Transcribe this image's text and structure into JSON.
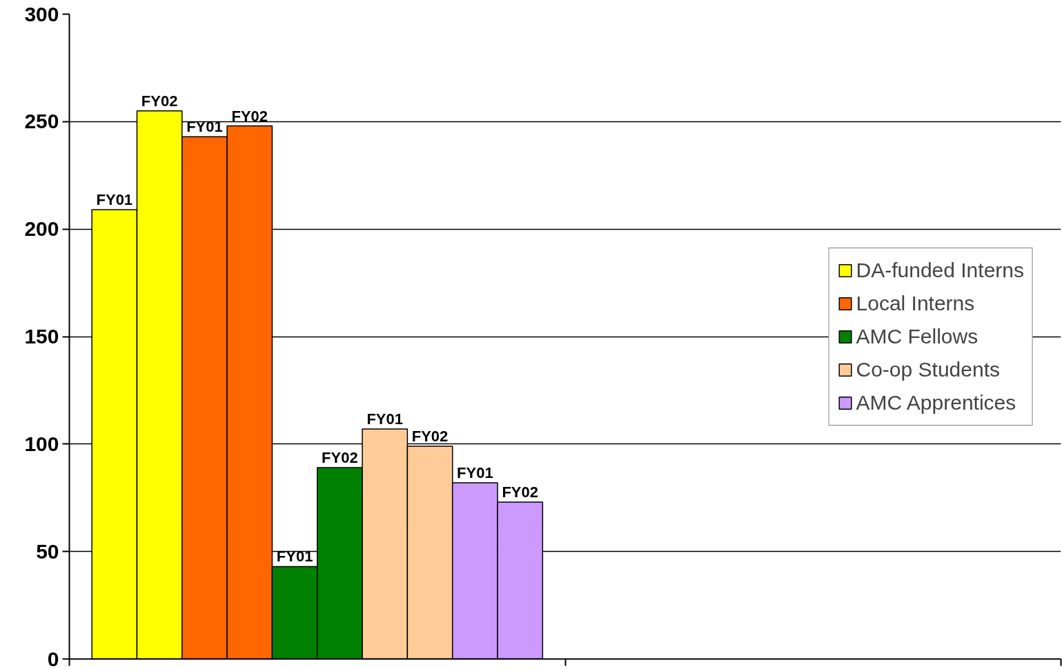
{
  "chart_data": {
    "type": "bar",
    "categories": [
      null,
      null,
      null,
      null,
      null,
      null,
      null,
      null,
      null,
      null
    ],
    "series": [
      {
        "name": "DA-funded Interns",
        "color": "#ffff00",
        "values": [
          209,
          255,
          null,
          null,
          null,
          null,
          null,
          null,
          null,
          null
        ],
        "value_labels": [
          "FY01",
          "FY02",
          null,
          null,
          null,
          null,
          null,
          null,
          null,
          null
        ]
      },
      {
        "name": "Local Interns",
        "color": "#ff6600",
        "values": [
          null,
          null,
          243,
          248,
          null,
          null,
          null,
          null,
          null,
          null
        ],
        "value_labels": [
          null,
          null,
          "FY01",
          "FY02",
          null,
          null,
          null,
          null,
          null,
          null
        ]
      },
      {
        "name": "AMC Fellows",
        "color": "#008000",
        "values": [
          null,
          null,
          null,
          null,
          43,
          89,
          null,
          null,
          null,
          null
        ],
        "value_labels": [
          null,
          null,
          null,
          null,
          "FY01",
          "FY02",
          null,
          null,
          null,
          null
        ]
      },
      {
        "name": "Co-op Students",
        "color": "#ffcc99",
        "values": [
          null,
          null,
          null,
          null,
          null,
          null,
          107,
          99,
          null,
          null
        ],
        "value_labels": [
          null,
          null,
          null,
          null,
          null,
          null,
          "FY01",
          "FY02",
          null,
          null
        ]
      },
      {
        "name": "AMC Apprentices",
        "color": "#cc99ff",
        "values": [
          null,
          null,
          null,
          null,
          null,
          null,
          null,
          null,
          82,
          73
        ],
        "value_labels": [
          null,
          null,
          null,
          null,
          null,
          null,
          null,
          null,
          "FY01",
          "FY02"
        ]
      }
    ],
    "ylim": [
      0,
      300
    ],
    "yticks": [
      0,
      50,
      100,
      150,
      200,
      250,
      300
    ],
    "stacked": true,
    "grid": "y",
    "legend": "right",
    "tick_labels": "y"
  }
}
